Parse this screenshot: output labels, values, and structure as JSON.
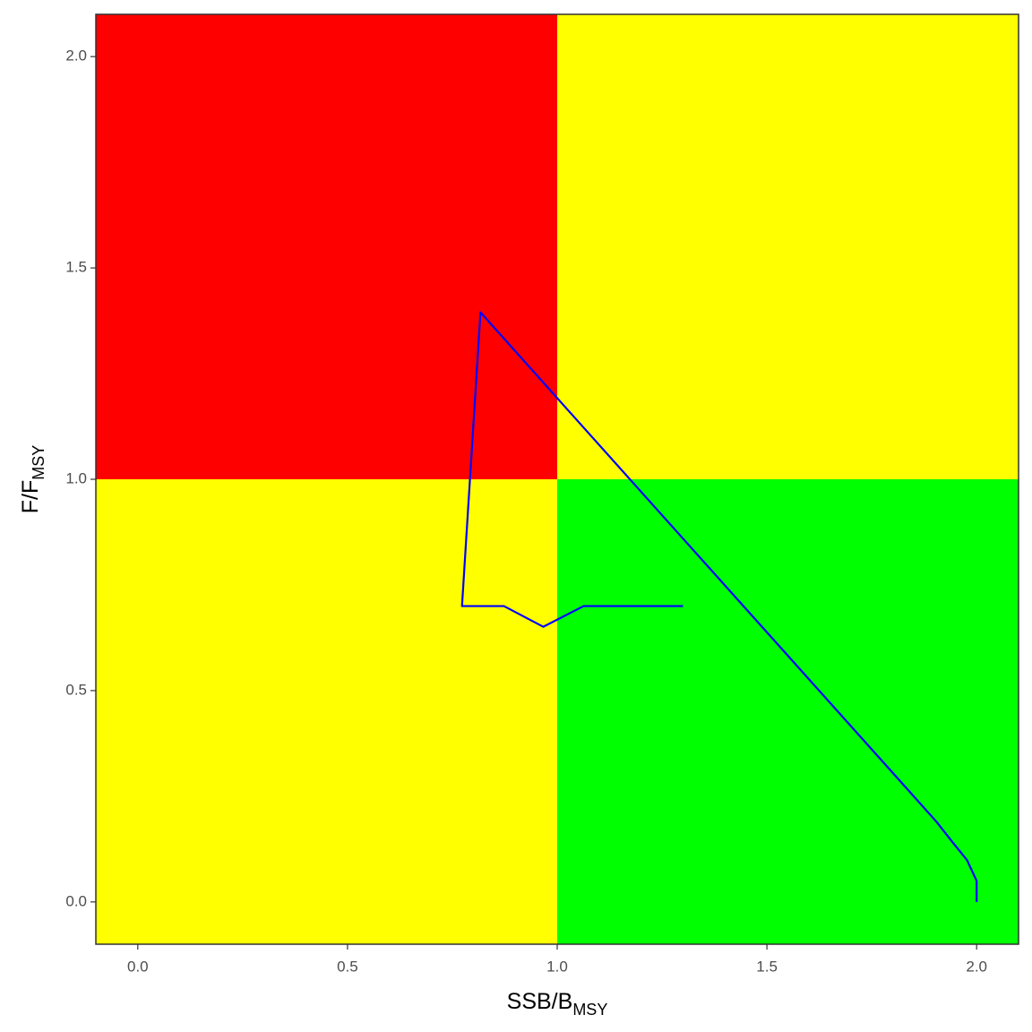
{
  "chart_data": {
    "type": "line",
    "xlabel": {
      "main": "SSB/B",
      "sub": "MSY"
    },
    "ylabel": {
      "main": "F/F",
      "sub": "MSY"
    },
    "x": [
      2.0,
      2.0,
      1.977,
      1.942,
      1.904,
      1.85,
      0.817,
      0.773,
      0.873,
      0.967,
      1.063,
      1.3
    ],
    "y": [
      0.0,
      0.05,
      0.099,
      0.142,
      0.19,
      0.25,
      1.395,
      0.7,
      0.7,
      0.651,
      0.7,
      0.7
    ],
    "color": "#0000ff",
    "xlim": [
      -0.1,
      2.1
    ],
    "ylim": [
      -0.1,
      2.1
    ],
    "xticks": [
      {
        "value": 0,
        "label": "0.0"
      },
      {
        "value": 0.5,
        "label": "0.5"
      },
      {
        "value": 1,
        "label": "1.0"
      },
      {
        "value": 1.5,
        "label": "1.5"
      },
      {
        "value": 2,
        "label": "2.0"
      }
    ],
    "yticks": [
      {
        "value": 0,
        "label": "0.0"
      },
      {
        "value": 0.5,
        "label": "0.5"
      },
      {
        "value": 1,
        "label": "1.0"
      },
      {
        "value": 1.5,
        "label": "1.5"
      },
      {
        "value": 2,
        "label": "2.0"
      }
    ],
    "x_ref": 1,
    "y_ref": 1,
    "quadrant_colors": {
      "upper_left": "#ff0000",
      "upper_right": "#ffff00",
      "lower_left": "#ffff00",
      "lower_right": "#00ff00"
    },
    "grid": false
  }
}
